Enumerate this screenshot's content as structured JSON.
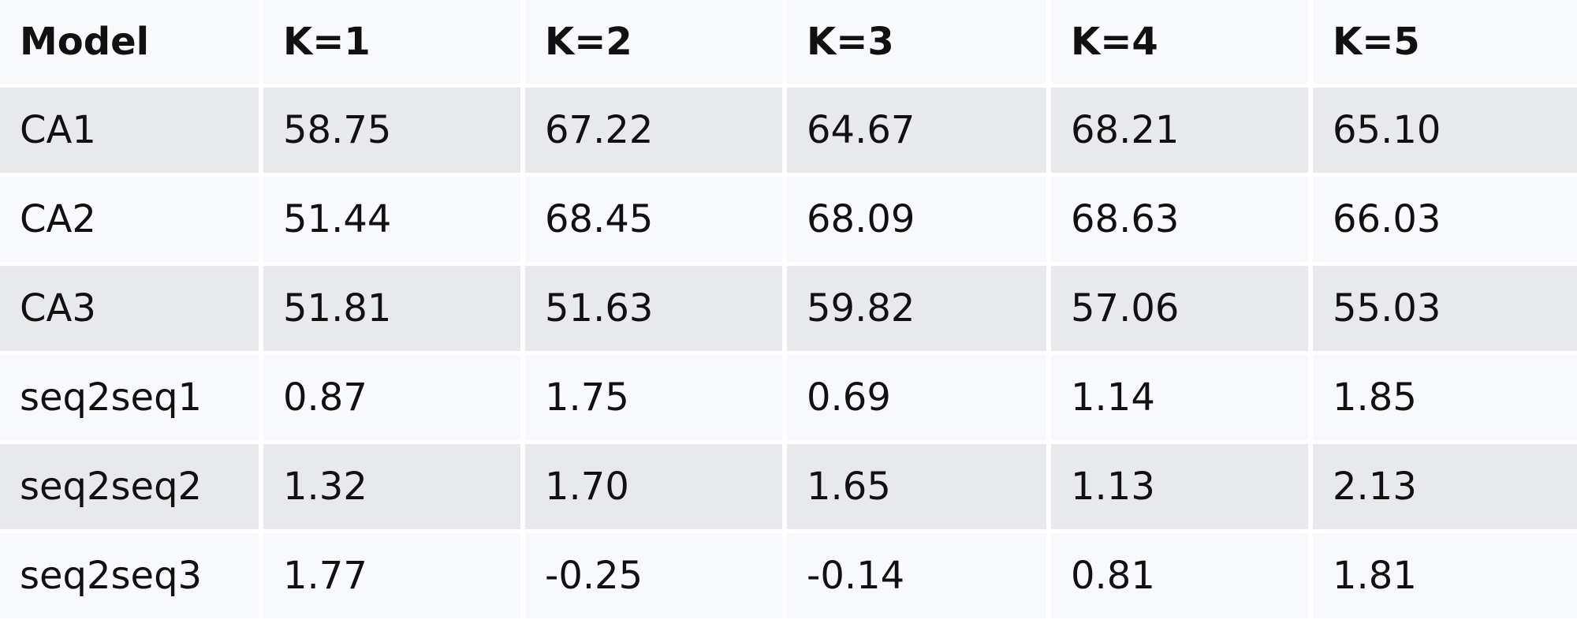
{
  "table": {
    "headers": [
      "Model",
      "K=1",
      "K=2",
      "K=3",
      "K=4",
      "K=5"
    ],
    "rows": [
      [
        "CA1",
        "58.75",
        "67.22",
        "64.67",
        "68.21",
        "65.10"
      ],
      [
        "CA2",
        "51.44",
        "68.45",
        "68.09",
        "68.63",
        "66.03"
      ],
      [
        "CA3",
        "51.81",
        "51.63",
        "59.82",
        "57.06",
        "55.03"
      ],
      [
        "seq2seq1",
        "0.87",
        "1.75",
        "0.69",
        "1.14",
        "1.85"
      ],
      [
        "seq2seq2",
        "1.32",
        "1.70",
        "1.65",
        "1.13",
        "2.13"
      ],
      [
        "seq2seq3",
        "1.77",
        "-0.25",
        "-0.14",
        "0.81",
        "1.81"
      ]
    ]
  },
  "colors": {
    "header_bg": "#f8f9fc",
    "row_shaded_bg": "#e8e9ec",
    "row_light_bg": "#f8f9fc",
    "text": "#111111"
  }
}
